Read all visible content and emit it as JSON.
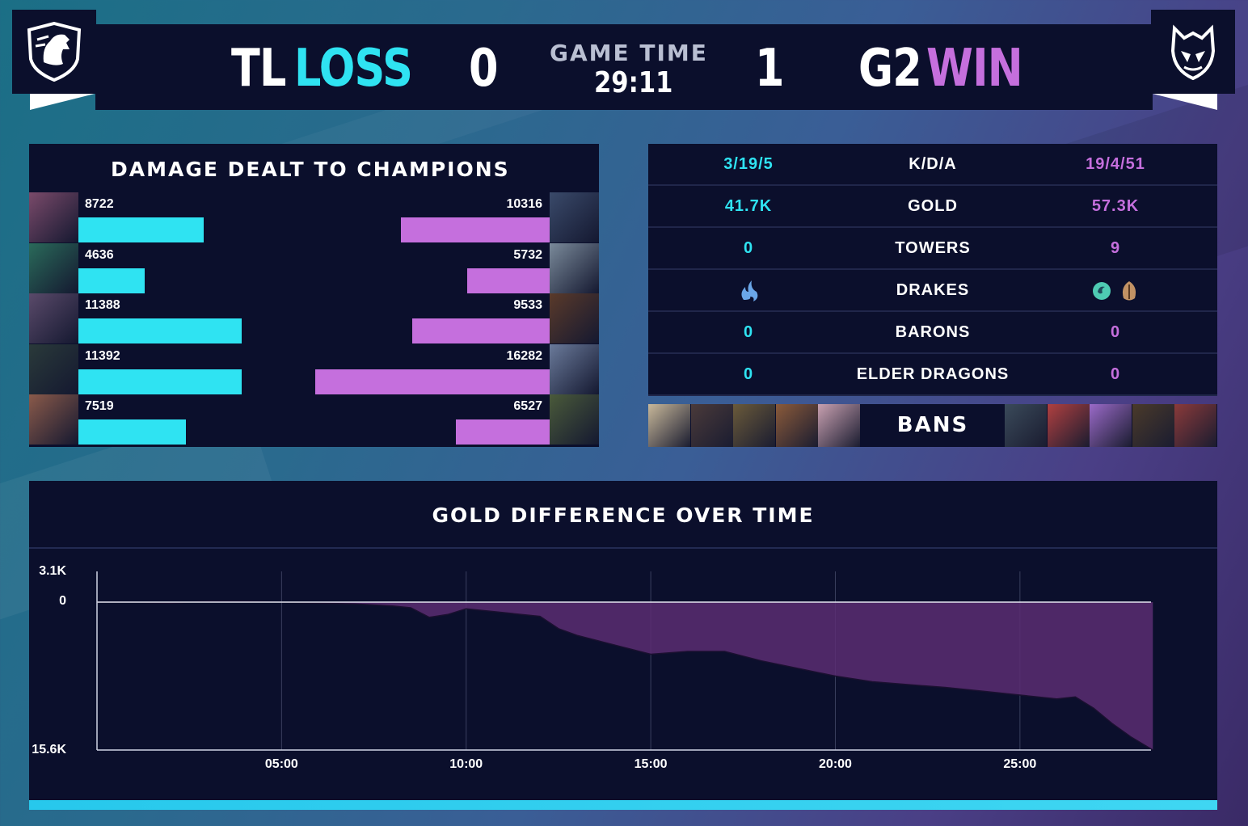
{
  "header": {
    "left_team": "TL",
    "left_result": "LOSS",
    "left_score": "0",
    "game_time_label": "GAME TIME",
    "game_time": "29:11",
    "right_score": "1",
    "right_team": "G2",
    "right_result": "WIN",
    "left_logo_icon": "team-liquid-horse-logo",
    "right_logo_icon": "g2-samurai-logo"
  },
  "colors": {
    "blue": "#2fe3f2",
    "pink": "#c56fdd",
    "panel": "#0b0f2c"
  },
  "damage": {
    "title": "DAMAGE DEALT TO CHAMPIONS",
    "max_scale": 16282,
    "rows": [
      {
        "left": "8722",
        "right": "10316"
      },
      {
        "left": "4636",
        "right": "5732"
      },
      {
        "left": "11388",
        "right": "9533"
      },
      {
        "left": "11392",
        "right": "16282"
      },
      {
        "left": "7519",
        "right": "6527"
      }
    ]
  },
  "stats": {
    "rows": [
      {
        "left": "3/19/5",
        "label": "K/D/A",
        "right": "19/4/51"
      },
      {
        "left": "41.7K",
        "label": "GOLD",
        "right": "57.3K"
      },
      {
        "left": "0",
        "label": "TOWERS",
        "right": "9"
      },
      {
        "left": "",
        "label": "DRAKES",
        "right": "",
        "left_icons": [
          "cloud-drake-icon"
        ],
        "right_icons": [
          "ocean-drake-icon",
          "mountain-drake-icon"
        ]
      },
      {
        "left": "0",
        "label": "BARONS",
        "right": "0"
      },
      {
        "left": "0",
        "label": "ELDER DRAGONS",
        "right": "0"
      }
    ]
  },
  "bans": {
    "label": "BANS"
  },
  "gold_chart": {
    "title": "GOLD DIFFERENCE OVER TIME",
    "y_top_label": "3.1K",
    "y_zero_label": "0",
    "y_bottom_label": "15.6K",
    "x_labels": [
      "05:00",
      "10:00",
      "15:00",
      "20:00",
      "25:00"
    ]
  },
  "chart_data": {
    "type": "area",
    "title": "GOLD DIFFERENCE OVER TIME",
    "xlabel": "",
    "ylabel": "",
    "x_unit": "minutes",
    "ylim": [
      -15600,
      3100
    ],
    "xlim": [
      0,
      28.6
    ],
    "x_ticks": [
      "05:00",
      "10:00",
      "15:00",
      "20:00",
      "25:00"
    ],
    "x": [
      0,
      1,
      2,
      3,
      4,
      5,
      6,
      7,
      8,
      8.5,
      9,
      9.5,
      10,
      11,
      12,
      12.5,
      13,
      14,
      15,
      16,
      17,
      18,
      19,
      20,
      21,
      22,
      23,
      24,
      25,
      26,
      26.5,
      27,
      27.5,
      28,
      28.6
    ],
    "y": [
      0,
      0,
      -100,
      100,
      100,
      0,
      -100,
      -200,
      -400,
      -600,
      -1600,
      -1300,
      -700,
      -1100,
      -1500,
      -2800,
      -3500,
      -4500,
      -5500,
      -5200,
      -5200,
      -6200,
      -7000,
      -7800,
      -8400,
      -8700,
      -9000,
      -9400,
      -9800,
      -10200,
      -10000,
      -11200,
      -12800,
      -14200,
      -15600
    ]
  }
}
